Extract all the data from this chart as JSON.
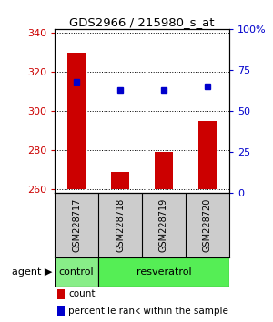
{
  "title": "GDS2966 / 215980_s_at",
  "samples": [
    "GSM228717",
    "GSM228718",
    "GSM228719",
    "GSM228720"
  ],
  "counts": [
    330,
    269,
    279,
    295
  ],
  "percentile_ranks": [
    68,
    63,
    63,
    65
  ],
  "ylim_left": [
    258,
    342
  ],
  "yticks_left": [
    260,
    280,
    300,
    320,
    340
  ],
  "ylim_right": [
    0,
    100
  ],
  "yticks_right": [
    0,
    25,
    50,
    75,
    100
  ],
  "bar_color": "#cc0000",
  "dot_color": "#0000cc",
  "bar_bottom": 260,
  "group_sample_indices": [
    [
      0
    ],
    [
      1,
      2,
      3
    ]
  ],
  "group_labels": [
    "control",
    "resveratrol"
  ],
  "group_colors": [
    "#88ee88",
    "#55ee55"
  ],
  "agent_label": "agent",
  "legend_count_label": "count",
  "legend_pct_label": "percentile rank within the sample",
  "background_color": "#ffffff",
  "plot_bg_color": "#ffffff",
  "sample_label_bg": "#cccccc",
  "tick_label_color_left": "#cc0000",
  "tick_label_color_right": "#0000cc"
}
